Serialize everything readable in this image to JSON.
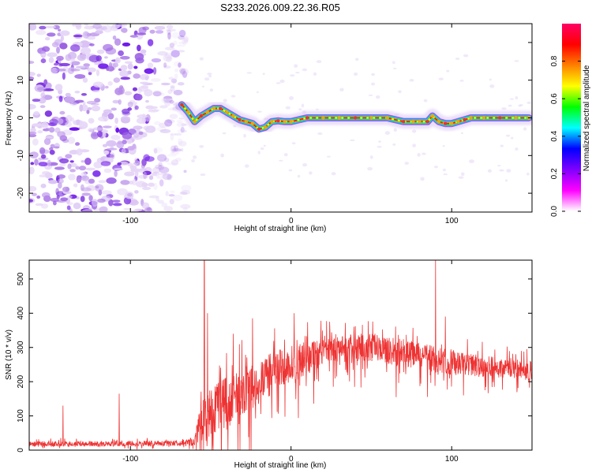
{
  "title": "S233.2026.009.22.36.R05",
  "chart_data": [
    {
      "type": "heatmap",
      "title": "S233.2026.009.22.36.R05",
      "xlabel": "Height of straight line (km)",
      "ylabel": "Frequency (Hz)",
      "xlim": [
        -163,
        150
      ],
      "ylim": [
        -25,
        25
      ],
      "xticks": [
        -100,
        0,
        100
      ],
      "yticks": [
        -20,
        -10,
        0,
        10,
        20
      ],
      "noise_region_x": [
        -163,
        -70
      ],
      "ridge": {
        "x": [
          -68,
          -64,
          -60,
          -56,
          -52,
          -48,
          -44,
          -40,
          -36,
          -32,
          -28,
          -24,
          -20,
          -16,
          -12,
          -8,
          -4,
          0,
          10,
          20,
          30,
          40,
          50,
          60,
          70,
          76,
          80,
          85,
          88,
          92,
          96,
          100,
          104,
          108,
          112,
          120,
          130,
          140,
          148
        ],
        "y": [
          3.5,
          1.5,
          -1.0,
          0.5,
          1.5,
          2.5,
          2.5,
          1.5,
          0.5,
          -0.5,
          -1.0,
          -1.5,
          -3.0,
          -2.5,
          -1.0,
          -0.8,
          -1.0,
          -1.0,
          0.0,
          0.0,
          0.0,
          0.0,
          0.0,
          0.0,
          -1.0,
          -1.0,
          -1.0,
          -1.0,
          0.5,
          -1.0,
          -1.5,
          -1.5,
          -1.0,
          -0.5,
          0.0,
          0.0,
          0.0,
          0.0,
          0.0
        ]
      },
      "colorbar": {
        "label": "Normalized spectral amplitude",
        "range": [
          0,
          1
        ],
        "ticks": [
          "0.0",
          "0.2",
          "0.4",
          "0.6",
          "0.8"
        ],
        "colors": [
          "#ffffff",
          "#ff00ff",
          "#7f00ff",
          "#0000ff",
          "#00ffff",
          "#00ff00",
          "#ffff00",
          "#ff8000",
          "#ff0000",
          "#ff0066"
        ]
      }
    },
    {
      "type": "line",
      "xlabel": "Height of straight line (km)",
      "ylabel": "SNR (10 * v/v)",
      "xlim": [
        -163,
        150
      ],
      "ylim": [
        0,
        555
      ],
      "xticks": [
        -100,
        0,
        100
      ],
      "yticks": [
        0,
        100,
        200,
        300,
        400,
        500
      ],
      "color": "#ee3333",
      "envelope": {
        "x": [
          -163,
          -120,
          -80,
          -60,
          -57,
          -50,
          -40,
          -30,
          -20,
          -10,
          0,
          10,
          20,
          30,
          40,
          50,
          60,
          70,
          80,
          90,
          100,
          110,
          120,
          130,
          140,
          150
        ],
        "mean": [
          18,
          18,
          20,
          22,
          80,
          110,
          140,
          170,
          200,
          230,
          250,
          270,
          290,
          300,
          300,
          300,
          290,
          285,
          275,
          265,
          255,
          250,
          245,
          240,
          235,
          232
        ],
        "amplitude": [
          8,
          8,
          8,
          10,
          60,
          80,
          80,
          70,
          65,
          60,
          55,
          50,
          45,
          40,
          40,
          40,
          40,
          40,
          40,
          38,
          35,
          35,
          32,
          30,
          30,
          28
        ]
      },
      "spikes": [
        {
          "x": -142,
          "y": 130
        },
        {
          "x": -107,
          "y": 165
        },
        {
          "x": -54,
          "y": 555
        },
        {
          "x": -52,
          "y": 400
        },
        {
          "x": -36,
          "y": 340
        },
        {
          "x": -24,
          "y": 385
        },
        {
          "x": 2,
          "y": 400
        },
        {
          "x": 24,
          "y": 375
        },
        {
          "x": 90,
          "y": 555
        },
        {
          "x": 96,
          "y": 390
        }
      ]
    }
  ]
}
